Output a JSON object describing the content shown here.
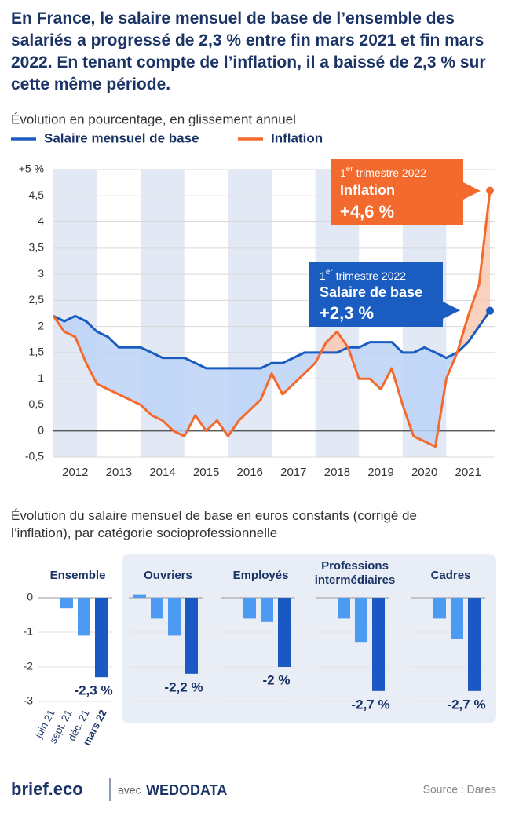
{
  "title": "En France, le salaire mensuel de base de l’ensemble des salariés a progressé de 2,3 % entre fin mars 2021 et fin mars 2022. En tenant compte de l’inflation, il a baissé de 2,3 % sur cette même période.",
  "chart_data": [
    {
      "type": "line",
      "subtitle": "Évolution en pourcentage, en glissement annuel",
      "x": [
        2012,
        2012.25,
        2012.5,
        2012.75,
        2013,
        2013.25,
        2013.5,
        2013.75,
        2014,
        2014.25,
        2014.5,
        2014.75,
        2015,
        2015.25,
        2015.5,
        2015.75,
        2016,
        2016.25,
        2016.5,
        2016.75,
        2017,
        2017.25,
        2017.5,
        2017.75,
        2018,
        2018.25,
        2018.5,
        2018.75,
        2019,
        2019.25,
        2019.5,
        2019.75,
        2020,
        2020.25,
        2020.5,
        2020.75,
        2021,
        2021.25,
        2021.5,
        2021.75,
        2022
      ],
      "series": [
        {
          "name": "Salaire mensuel de base",
          "color": "#1b5cc0",
          "values": [
            2.2,
            2.1,
            2.2,
            2.1,
            1.9,
            1.8,
            1.6,
            1.6,
            1.6,
            1.5,
            1.4,
            1.4,
            1.4,
            1.3,
            1.2,
            1.2,
            1.2,
            1.2,
            1.2,
            1.2,
            1.3,
            1.3,
            1.4,
            1.5,
            1.5,
            1.5,
            1.5,
            1.6,
            1.6,
            1.7,
            1.7,
            1.7,
            1.5,
            1.5,
            1.6,
            1.5,
            1.4,
            1.5,
            1.7,
            2.0,
            2.3
          ]
        },
        {
          "name": "Inflation",
          "color": "#f26a2e",
          "values": [
            2.2,
            1.9,
            1.8,
            1.3,
            0.9,
            0.8,
            0.7,
            0.6,
            0.5,
            0.3,
            0.2,
            0,
            -0.1,
            0.3,
            0,
            0.2,
            -0.1,
            0.2,
            0.4,
            0.6,
            1.1,
            0.7,
            0.9,
            1.1,
            1.3,
            1.7,
            1.9,
            1.6,
            1.0,
            1.0,
            0.8,
            1.2,
            0.5,
            -0.1,
            -0.2,
            -0.3,
            1.0,
            1.5,
            2.2,
            2.8,
            4.6
          ]
        }
      ],
      "annotations": [
        {
          "period": "1er trimestre 2022",
          "label": "Inflation",
          "value_label": "+4,6 %"
        },
        {
          "period": "1er trimestre 2022",
          "label": "Salaire de base",
          "value_label": "+2,3 %"
        }
      ],
      "xlim": [
        2012,
        2022.125
      ],
      "xticks": [
        {
          "value": 2012.5,
          "label": "2012"
        },
        {
          "value": 2013.5,
          "label": "2013"
        },
        {
          "value": 2014.5,
          "label": "2014"
        },
        {
          "value": 2015.5,
          "label": "2015"
        },
        {
          "value": 2016.5,
          "label": "2016"
        },
        {
          "value": 2017.5,
          "label": "2017"
        },
        {
          "value": 2018.5,
          "label": "2018"
        },
        {
          "value": 2019.5,
          "label": "2019"
        },
        {
          "value": 2020.5,
          "label": "2020"
        },
        {
          "value": 2021.5,
          "label": "2021"
        }
      ],
      "ylim": [
        -0.5,
        5
      ],
      "yticks": [
        {
          "value": 5,
          "label": "+5 %"
        },
        {
          "value": 4.5,
          "label": "4,5"
        },
        4,
        {
          "value": 3.5,
          "label": "3,5"
        },
        3,
        {
          "value": 2.5,
          "label": "2,5"
        },
        2,
        {
          "value": 1.5,
          "label": "1,5"
        },
        1,
        {
          "value": 0.5,
          "label": "0,5"
        },
        0,
        {
          "value": -0.5,
          "label": "-0,5"
        }
      ],
      "grid": true
    },
    {
      "type": "grouped-bar",
      "title": "Évolution du salaire mensuel de base en euros constants (corrigé de l’inflation), par catégorie socioprofessionnelle",
      "categories": [
        "juin 21",
        "sept. 21",
        "déc. 21",
        "mars 22"
      ],
      "colors": [
        "#4d9af3",
        "#4d9af3",
        "#4d9af3",
        "#1a58c4"
      ],
      "groups": [
        {
          "name": "Ensemble",
          "values": [
            0,
            -0.3,
            -1.1,
            -2.3
          ],
          "value_labels": [
            null,
            null,
            null,
            "-2,3 %"
          ]
        },
        {
          "name": "Ouvriers",
          "values": [
            0.1,
            -0.6,
            -1.1,
            -2.2
          ],
          "value_labels": [
            null,
            null,
            null,
            "-2,2 %"
          ]
        },
        {
          "name": "Employés",
          "values": [
            0,
            -0.6,
            -0.7,
            -2.0
          ],
          "value_labels": [
            null,
            null,
            null,
            "-2 %"
          ]
        },
        {
          "name": "Professions intermédiaires",
          "values": [
            0,
            -0.6,
            -1.3,
            -2.7
          ],
          "value_labels": [
            null,
            null,
            null,
            "-2,7 %"
          ]
        },
        {
          "name": "Cadres",
          "values": [
            0,
            -0.6,
            -1.2,
            -2.7
          ],
          "value_labels": [
            null,
            null,
            null,
            "-2,7 %"
          ]
        }
      ],
      "ylim": [
        -3.3,
        0.3
      ],
      "yticks": [
        0,
        -1,
        -2,
        -3
      ]
    }
  ],
  "footer": {
    "brand": "brief.eco",
    "with": "avec",
    "partner": "WEDODATA",
    "source": "Source : Dares"
  }
}
